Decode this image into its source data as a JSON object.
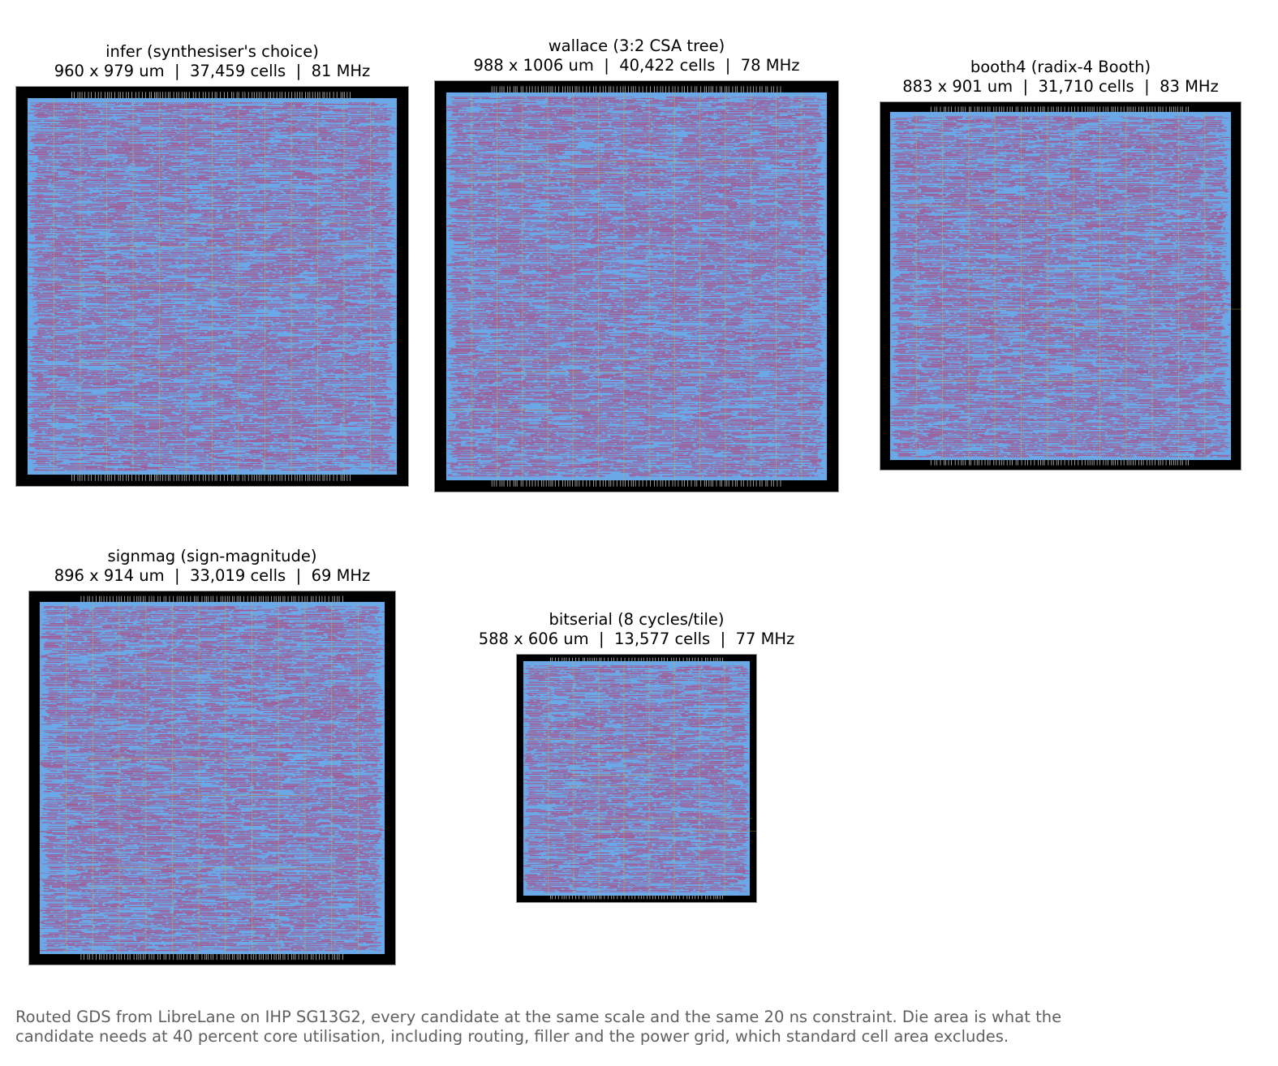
{
  "candidates": [
    {
      "name": "infer",
      "description": "(synthesiser's choice)",
      "dimensions": "960 x 979 um",
      "cells": "37,459 cells",
      "frequency": "81 MHz"
    },
    {
      "name": "wallace",
      "description": "(3:2 CSA tree)",
      "dimensions": "988 x 1006 um",
      "cells": "40,422 cells",
      "frequency": "78 MHz"
    },
    {
      "name": "booth4",
      "description": "(radix-4 Booth)",
      "dimensions": "883 x 901 um",
      "cells": "31,710 cells",
      "frequency": "83 MHz"
    },
    {
      "name": "signmag",
      "description": "(sign-magnitude)",
      "dimensions": "896 x 914 um",
      "cells": "33,019 cells",
      "frequency": "69 MHz"
    },
    {
      "name": "bitserial",
      "description": "(8 cycles/tile)",
      "dimensions": "588 x 606 um",
      "cells": "13,577 cells",
      "frequency": "77 MHz"
    }
  ],
  "separator": "|",
  "caption": "Routed GDS from LibreLane on IHP SG13G2, every candidate at the same scale and the same 20 ns constraint. Die area is what the candidate needs at 40 percent core utilisation, including routing, filler and the power grid, which standard cell area excludes.",
  "colors": {
    "die_background": "#000000",
    "core_background": "#6aa8e8",
    "route_primary": "#d4164a",
    "route_secondary": "#c8b44a",
    "caption_text": "#5f5f5f"
  }
}
